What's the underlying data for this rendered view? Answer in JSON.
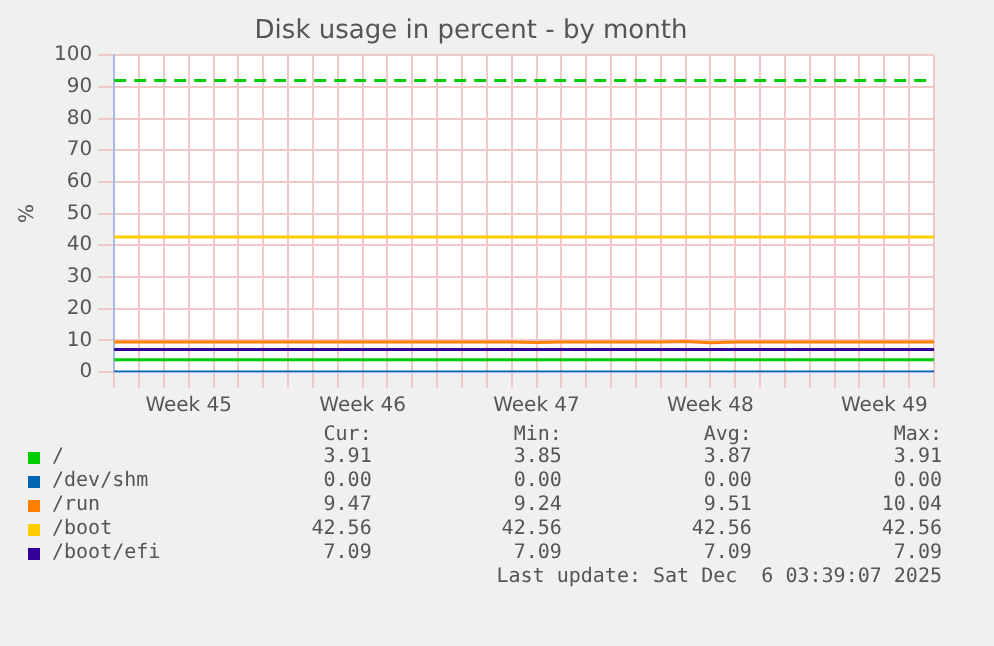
{
  "chart_data": {
    "type": "line",
    "title": "Disk usage in percent - by month",
    "ylabel": "%",
    "categories": [
      null,
      null,
      null,
      "Week 45",
      null,
      null,
      null,
      null,
      null,
      null,
      "Week 46",
      null,
      null,
      null,
      null,
      null,
      null,
      "Week 47",
      null,
      null,
      null,
      null,
      null,
      null,
      "Week 48",
      null,
      null,
      null,
      null,
      null,
      null,
      "Week 49",
      null,
      null
    ],
    "ylim": [
      0,
      100
    ],
    "yticks": [
      0,
      10,
      20,
      30,
      40,
      50,
      60,
      70,
      80,
      90,
      100
    ],
    "grid": true,
    "legend": "bottom",
    "marker": "none",
    "line_style": "solid",
    "series": [
      {
        "name": "/",
        "color": "#00cc00",
        "values": [
          3.9,
          3.9,
          3.9,
          3.9,
          3.9,
          3.9,
          3.9,
          3.9,
          3.9,
          3.9,
          3.9,
          3.9,
          3.9,
          3.9,
          3.9,
          3.9,
          3.9,
          3.9,
          3.9,
          3.9,
          3.9,
          3.9,
          3.9,
          3.9,
          3.9,
          3.9,
          3.9,
          3.9,
          3.9,
          3.9,
          3.9,
          3.9,
          3.9,
          3.9
        ]
      },
      {
        "name": "/dev/shm",
        "color": "#0066b3",
        "values": [
          0,
          0,
          0,
          0,
          0,
          0,
          0,
          0,
          0,
          0,
          0,
          0,
          0,
          0,
          0,
          0,
          0,
          0,
          0,
          0,
          0,
          0,
          0,
          0,
          0,
          0,
          0,
          0,
          0,
          0,
          0,
          0,
          0,
          0
        ]
      },
      {
        "name": "/run",
        "color": "#ff8000",
        "values": [
          9.5,
          9.5,
          9.5,
          9.5,
          9.5,
          9.5,
          9.5,
          9.5,
          9.5,
          9.5,
          9.5,
          9.5,
          9.5,
          9.5,
          9.5,
          9.5,
          9.5,
          9.3,
          9.5,
          9.5,
          9.5,
          9.5,
          9.5,
          9.6,
          9.2,
          9.5,
          9.5,
          9.5,
          9.5,
          9.5,
          9.5,
          9.5,
          9.5,
          9.5
        ]
      },
      {
        "name": "/boot",
        "color": "#ffcc00",
        "values": [
          42.6,
          42.6,
          42.6,
          42.6,
          42.6,
          42.6,
          42.6,
          42.6,
          42.6,
          42.6,
          42.6,
          42.6,
          42.6,
          42.6,
          42.6,
          42.6,
          42.6,
          42.6,
          42.6,
          42.6,
          42.6,
          42.6,
          42.6,
          42.6,
          42.6,
          42.6,
          42.6,
          42.6,
          42.6,
          42.6,
          42.6,
          42.6,
          42.6,
          42.6
        ]
      },
      {
        "name": "/boot/efi",
        "color": "#330099",
        "values": [
          7.1,
          7.1,
          7.1,
          7.1,
          7.1,
          7.1,
          7.1,
          7.1,
          7.1,
          7.1,
          7.1,
          7.1,
          7.1,
          7.1,
          7.1,
          7.1,
          7.1,
          7.1,
          7.1,
          7.1,
          7.1,
          7.1,
          7.1,
          7.1,
          7.1,
          7.1,
          7.1,
          7.1,
          7.1,
          7.1,
          7.1,
          7.1,
          7.1,
          7.1
        ]
      }
    ],
    "ref_lines": [
      {
        "axis": "y",
        "value": 92,
        "color": "#00cc00",
        "line_style": "dashed"
      }
    ],
    "annotations": [
      "Cur:",
      "Min:",
      "Avg:",
      "Max:",
      "3.91",
      "3.85",
      "3.87",
      "3.91",
      "0.00",
      "0.00",
      "0.00",
      "0.00",
      "9.47",
      "9.24",
      "9.51",
      "10.04",
      "42.56",
      "42.56",
      "42.56",
      "42.56",
      "7.09",
      "7.09",
      "7.09",
      "7.09",
      "Last update: Sat Dec  6 03:39:07 2025"
    ]
  }
}
